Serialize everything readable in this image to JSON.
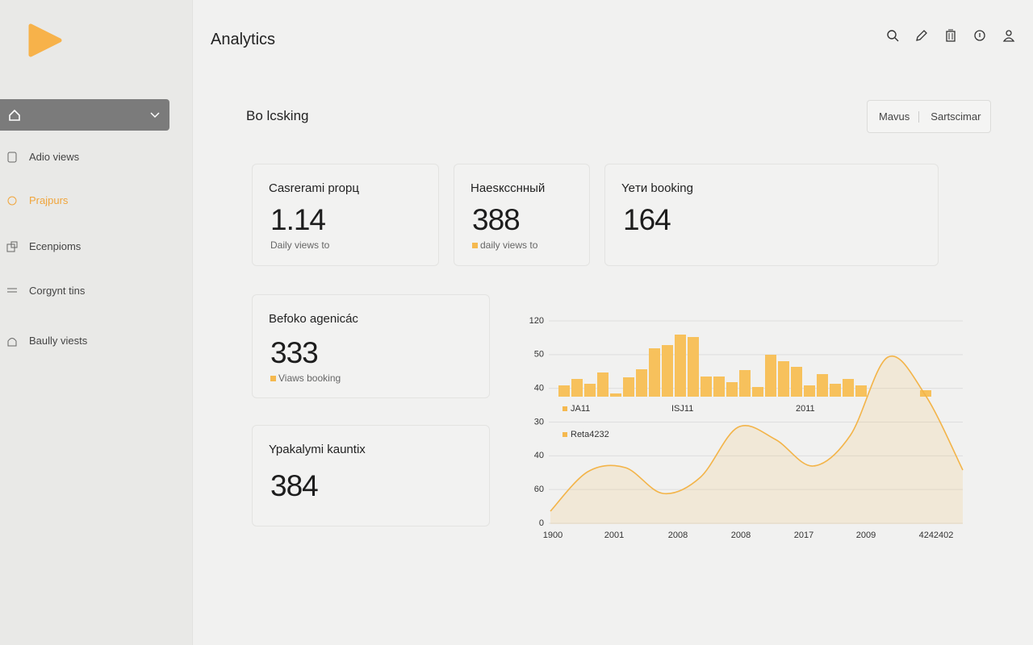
{
  "header": {
    "title": "Analytics"
  },
  "sidebar": {
    "items": [
      {
        "label": "Adio views"
      },
      {
        "label": "Prajpurs"
      },
      {
        "label": "Ecenpioms"
      },
      {
        "label": "Corgynt tins"
      },
      {
        "label": "Baully viests"
      }
    ]
  },
  "section": {
    "title": "Bo lcsking",
    "buttons": [
      "Mavus",
      "Sartscimar"
    ]
  },
  "cards": [
    {
      "title": "Casrerami proрц",
      "value": "1.14",
      "subtitle": "Daily views to"
    },
    {
      "title": "Haesкcснный",
      "value": "388",
      "subtitle": "daily views to"
    },
    {
      "title": "Yeти booking",
      "value": "164"
    },
    {
      "title": "Befoko agenicác",
      "value": "333",
      "subtitle": "Viaws booking"
    },
    {
      "title": "Ypakalymi kauntix",
      "value": "384"
    }
  ],
  "chart": {
    "y_labels": [
      "120",
      "50",
      "40",
      "30",
      "40",
      "60",
      "0"
    ],
    "x_labels": [
      "1900",
      "2001",
      "2008",
      "2008",
      "2017",
      "2009",
      "4242402"
    ],
    "annotations": [
      "JA11",
      "ISJ11",
      "2011",
      "Reta4232"
    ],
    "bars": {
      "color": "#f7c15c",
      "values": [
        14,
        22,
        16,
        30,
        4,
        24,
        34,
        60,
        64,
        77,
        74,
        25,
        25,
        18,
        33,
        12,
        52,
        44,
        37,
        14,
        28,
        16,
        22,
        14,
        null,
        null,
        null,
        null,
        8
      ]
    },
    "area": {
      "color": "#f3b449",
      "values": [
        16,
        65,
        70,
        38,
        58,
        120,
        105,
        72,
        110,
        207,
        160,
        67
      ]
    }
  }
}
